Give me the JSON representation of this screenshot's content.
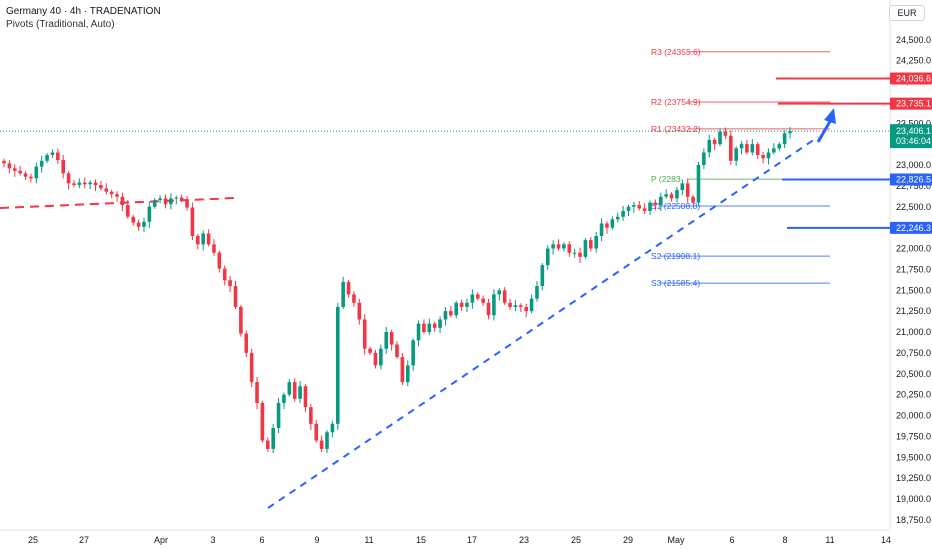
{
  "header": {
    "title": "Germany 40 · 4h · TRADENATION",
    "subtitle": "Pivots (Traditional, Auto)",
    "currency": "EUR"
  },
  "colors": {
    "bull": "#089981",
    "bear": "#f23645",
    "pivot_red": "#f23645",
    "pivot_green": "#4caf50",
    "pivot_blue": "#2962ff",
    "trend": "#2962ff",
    "grid_text": "#131722"
  },
  "chart_data": {
    "type": "candlestick",
    "y_axis": {
      "ticks": [
        "24,500.0",
        "24,250.0",
        "24,000.0",
        "23,750.0",
        "23,500.0",
        "23,250.0",
        "23,000.0",
        "22,750.0",
        "22,500.0",
        "22,250.0",
        "22,000.0",
        "21,750.0",
        "21,500.0",
        "21,250.0",
        "21,000.0",
        "20,750.0",
        "20,500.0",
        "20,250.0",
        "20,000.0",
        "19,750.0",
        "19,500.0",
        "19,250.0",
        "19,000.0",
        "18,750.0"
      ],
      "range": [
        18700,
        24650
      ]
    },
    "x_axis": {
      "ticks": [
        "25",
        "27",
        "Apr",
        "3",
        "6",
        "9",
        "11",
        "15",
        "17",
        "23",
        "25",
        "29",
        "May",
        "6",
        "8",
        "11",
        "14"
      ]
    },
    "pivots": [
      {
        "label": "R3 (24355.6)",
        "value": 24355.6,
        "color": "red"
      },
      {
        "label": "R2 (23754.9)",
        "value": 23754.9,
        "color": "red"
      },
      {
        "label": "R1 (23432.2)",
        "value": 23432.2,
        "color": "red"
      },
      {
        "label": "P (22831.5)",
        "value": 22831.5,
        "color": "green",
        "shown": "P (2283"
      },
      {
        "label": "S1 (22508.8)",
        "value": 22508.8,
        "color": "blue",
        "shown": "S1 (22508.8)"
      },
      {
        "label": "S2 (21908.1)",
        "value": 21908.1,
        "color": "blue"
      },
      {
        "label": "S3 (21585.4)",
        "value": 21585.4,
        "color": "blue"
      }
    ],
    "price_labels": [
      {
        "text": "24,036.6",
        "value": 24036.6,
        "color": "#f23645"
      },
      {
        "text": "23,735.1",
        "value": 23735.1,
        "color": "#f23645"
      },
      {
        "text": "22,826.5",
        "value": 22826.5,
        "color": "#2962ff"
      },
      {
        "text": "22,246.3",
        "value": 22246.3,
        "color": "#2962ff"
      }
    ],
    "last_price": {
      "price": "23,406.1",
      "countdown": "03:46:04",
      "value": 23406.1
    },
    "closes": [
      23020,
      22960,
      22930,
      22900,
      22860,
      22840,
      22980,
      23050,
      23120,
      23150,
      23060,
      22900,
      22780,
      22760,
      22790,
      22770,
      22790,
      22760,
      22720,
      22680,
      22650,
      22620,
      22520,
      22380,
      22310,
      22260,
      22320,
      22500,
      22580,
      22600,
      22530,
      22600,
      22610,
      22580,
      22490,
      22150,
      22050,
      22180,
      22050,
      21950,
      21760,
      21620,
      21550,
      21300,
      20980,
      20750,
      20400,
      20150,
      19700,
      19600,
      19850,
      20150,
      20250,
      20400,
      20200,
      20350,
      20100,
      19900,
      19700,
      19600,
      19800,
      19900,
      21300,
      21600,
      21450,
      21350,
      21150,
      20800,
      20750,
      20600,
      20800,
      21000,
      20850,
      20700,
      20400,
      20600,
      20900,
      21100,
      21000,
      21100,
      21050,
      21150,
      21250,
      21200,
      21350,
      21300,
      21350,
      21450,
      21400,
      21350,
      21200,
      21450,
      21500,
      21350,
      21300,
      21320,
      21300,
      21250,
      21400,
      21550,
      21800,
      22000,
      22050,
      22000,
      22050,
      21950,
      21950,
      21900,
      22100,
      22000,
      22150,
      22300,
      22250,
      22350,
      22380,
      22450,
      22500,
      22520,
      22480,
      22450,
      22550,
      22520,
      22620,
      22650,
      22600,
      22700,
      22780,
      22620,
      22550,
      23000,
      23150,
      23300,
      23250,
      23400,
      23350,
      23050,
      23200,
      23250,
      23150,
      23250,
      23120,
      23080,
      23150,
      23200,
      23250,
      23380,
      23406
    ]
  },
  "trendlines": {
    "rising_support": {
      "from": [
        6.0,
        18820
      ],
      "to": [
        11.0,
        23400
      ]
    },
    "old_resistance": {
      "from": [
        25.0,
        22500
      ],
      "to": [
        3.5,
        22650
      ]
    }
  }
}
